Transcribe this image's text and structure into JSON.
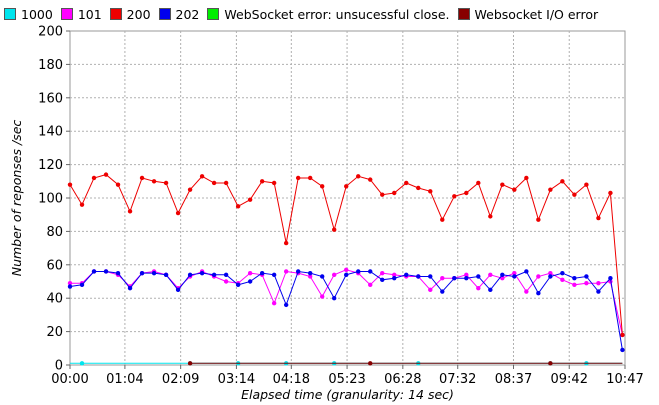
{
  "chart_data": {
    "type": "line",
    "xlabel": "Elapsed time (granularity: 14 sec)",
    "ylabel": "Number of reponses /sec",
    "ylim": [
      0,
      200
    ],
    "yticks": [
      0,
      20,
      40,
      60,
      80,
      100,
      120,
      140,
      160,
      180,
      200
    ],
    "xlim": [
      0,
      647
    ],
    "xtick_seconds": [
      0,
      64,
      129,
      194,
      258,
      323,
      388,
      452,
      517,
      582,
      647
    ],
    "xtick_labels": [
      "00:00",
      "01:04",
      "02:09",
      "03:14",
      "04:18",
      "05:23",
      "06:28",
      "07:32",
      "08:37",
      "09:42",
      "10:47"
    ],
    "grid": true,
    "legend_position": "top",
    "series": [
      {
        "name": "1000",
        "color": "#00e5ee",
        "x": [
          0,
          14,
          28,
          42,
          56,
          70,
          84,
          98,
          112,
          126,
          140,
          154,
          168,
          182,
          196,
          210,
          224,
          238,
          252,
          266,
          280,
          294,
          308,
          322,
          336,
          350,
          364,
          378,
          392,
          406,
          420,
          434,
          448,
          462,
          476,
          490,
          504,
          518,
          532,
          546,
          560,
          574,
          588,
          602,
          616,
          630,
          644
        ],
        "values": [
          1,
          1,
          1,
          1,
          1,
          1,
          1,
          1,
          1,
          1,
          1,
          1,
          1,
          1,
          1,
          1,
          1,
          1,
          1,
          1,
          1,
          1,
          1,
          1,
          1,
          1,
          1,
          1,
          1,
          1,
          1,
          1,
          1,
          1,
          1,
          1,
          1,
          1,
          1,
          1,
          1,
          1,
          1,
          1,
          1,
          1,
          1
        ],
        "markers_x": [
          14,
          140,
          196,
          252,
          308,
          406,
          560,
          602
        ]
      },
      {
        "name": "101",
        "color": "#ff00ff",
        "x": [
          0,
          14,
          28,
          42,
          56,
          70,
          84,
          98,
          112,
          126,
          140,
          154,
          168,
          182,
          196,
          210,
          224,
          238,
          252,
          266,
          280,
          294,
          308,
          322,
          336,
          350,
          364,
          378,
          392,
          406,
          420,
          434,
          448,
          462,
          476,
          490,
          504,
          518,
          532,
          546,
          560,
          574,
          588,
          602,
          616,
          630,
          644
        ],
        "values": [
          49,
          49,
          56,
          56,
          54,
          47,
          55,
          56,
          54,
          46,
          53,
          56,
          53,
          50,
          49,
          55,
          54,
          37,
          56,
          55,
          53,
          41,
          54,
          57,
          55,
          48,
          55,
          54,
          53,
          53,
          45,
          52,
          52,
          54,
          46,
          54,
          52,
          55,
          44,
          53,
          55,
          51,
          48,
          49,
          49,
          50,
          18
        ]
      },
      {
        "name": "200",
        "color": "#ee0000",
        "x": [
          0,
          14,
          28,
          42,
          56,
          70,
          84,
          98,
          112,
          126,
          140,
          154,
          168,
          182,
          196,
          210,
          224,
          238,
          252,
          266,
          280,
          294,
          308,
          322,
          336,
          350,
          364,
          378,
          392,
          406,
          420,
          434,
          448,
          462,
          476,
          490,
          504,
          518,
          532,
          546,
          560,
          574,
          588,
          602,
          616,
          630,
          644
        ],
        "values": [
          108,
          96,
          112,
          114,
          108,
          92,
          112,
          110,
          109,
          91,
          105,
          113,
          109,
          109,
          95,
          99,
          110,
          109,
          73,
          112,
          112,
          107,
          81,
          107,
          113,
          111,
          102,
          103,
          109,
          106,
          104,
          87,
          101,
          103,
          109,
          89,
          108,
          105,
          112,
          87,
          105,
          110,
          102,
          108,
          88,
          103,
          18
        ]
      },
      {
        "name": "202",
        "color": "#0000ee",
        "x": [
          0,
          14,
          28,
          42,
          56,
          70,
          84,
          98,
          112,
          126,
          140,
          154,
          168,
          182,
          196,
          210,
          224,
          238,
          252,
          266,
          280,
          294,
          308,
          322,
          336,
          350,
          364,
          378,
          392,
          406,
          420,
          434,
          448,
          462,
          476,
          490,
          504,
          518,
          532,
          546,
          560,
          574,
          588,
          602,
          616,
          630,
          644
        ],
        "values": [
          47,
          48,
          56,
          56,
          55,
          46,
          55,
          55,
          54,
          45,
          54,
          55,
          54,
          54,
          48,
          50,
          55,
          54,
          36,
          56,
          55,
          53,
          40,
          54,
          56,
          56,
          51,
          52,
          54,
          53,
          53,
          44,
          52,
          52,
          53,
          45,
          54,
          53,
          56,
          43,
          53,
          55,
          52,
          53,
          44,
          52,
          9
        ]
      },
      {
        "name": "WebSocket error: unsucessful close.",
        "color": "#00ee00",
        "x": [],
        "values": []
      },
      {
        "name": "Websocket I/O error",
        "color": "#880000",
        "x": [
          140,
          644
        ],
        "values": [
          1,
          1
        ],
        "markers_x": [
          140,
          350,
          560
        ]
      }
    ]
  }
}
